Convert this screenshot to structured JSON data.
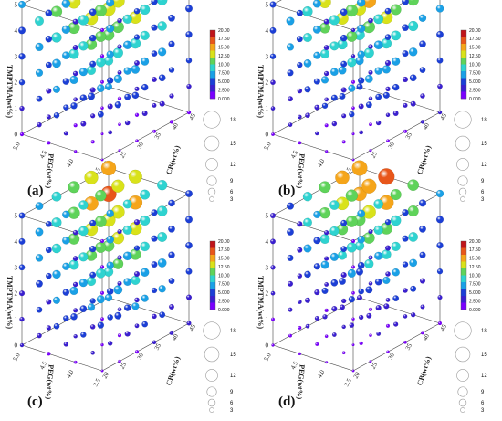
{
  "chart_data": [
    {
      "type": "scatter",
      "panel_label": "(a)",
      "xlabel": "CB(wt%)",
      "ylabel": "PEG(wt%)",
      "zlabel": "TMPTMA(wt%)",
      "x_ticks": [
        "20",
        "25",
        "30",
        "35",
        "40",
        "45"
      ],
      "y_ticks": [
        "3.5",
        "4.0",
        "4.5",
        "5.0"
      ],
      "z_ticks": [
        "0",
        "1",
        "2",
        "3",
        "4",
        "5"
      ],
      "xlim": [
        20,
        45
      ],
      "ylim": [
        3.5,
        5.0
      ],
      "zlim": [
        0,
        5
      ],
      "grid": "6x4x6 lattice of spheres",
      "hot_corner": [
        1.0,
        1.0,
        1.0
      ],
      "peak": 20,
      "sharpness": 1.0,
      "colorbar_ticks": [
        "20.00",
        "17.50",
        "15.00",
        "12.50",
        "10.00",
        "7.500",
        "5.000",
        "2.500",
        "0.000"
      ],
      "size_legend_ticks": [
        "18",
        "15",
        "12",
        "9",
        "6",
        "3"
      ]
    },
    {
      "type": "scatter",
      "panel_label": "(b)",
      "xlabel": "CB(wt%)",
      "ylabel": "PEG(wt%)",
      "zlabel": "TMPTMA(wt%)",
      "x_ticks": [
        "20",
        "25",
        "30",
        "35",
        "40",
        "45"
      ],
      "y_ticks": [
        "3.5",
        "4.0",
        "4.5",
        "5.0"
      ],
      "z_ticks": [
        "0",
        "1",
        "2",
        "3",
        "4",
        "5"
      ],
      "xlim": [
        20,
        45
      ],
      "ylim": [
        3.5,
        5.0
      ],
      "zlim": [
        0,
        5
      ],
      "grid": "6x4x6 lattice of spheres",
      "hot_corner": [
        1.0,
        0.85,
        1.0
      ],
      "peak": 20,
      "sharpness": 1.15,
      "colorbar_ticks": [
        "20.00",
        "17.50",
        "15.00",
        "12.50",
        "10.00",
        "7.500",
        "5.000",
        "2.500",
        "0.000"
      ],
      "size_legend_ticks": [
        "18",
        "15",
        "12",
        "9",
        "6",
        "3"
      ]
    },
    {
      "type": "scatter",
      "panel_label": "(c)",
      "xlabel": "CB(wt%)",
      "ylabel": "PEG(wt%)",
      "zlabel": "TMPTMA(wt%)",
      "x_ticks": [
        "20",
        "25",
        "30",
        "35",
        "40",
        "45"
      ],
      "y_ticks": [
        "3.5",
        "4.0",
        "4.5",
        "5.0"
      ],
      "z_ticks": [
        "0",
        "1",
        "2",
        "3",
        "4",
        "5"
      ],
      "xlim": [
        20,
        45
      ],
      "ylim": [
        3.5,
        5.0
      ],
      "zlim": [
        0,
        5
      ],
      "grid": "6x4x6 lattice of spheres",
      "hot_corner": [
        1.0,
        0.9,
        0.85
      ],
      "peak": 18,
      "sharpness": 1.1,
      "colorbar_ticks": [
        "20.00",
        "17.50",
        "15.00",
        "12.50",
        "10.00",
        "7.500",
        "5.000",
        "2.500",
        "0.000"
      ],
      "size_legend_ticks": [
        "18",
        "15",
        "12",
        "9",
        "6",
        "3"
      ]
    },
    {
      "type": "scatter",
      "panel_label": "(d)",
      "xlabel": "CB(wt%)",
      "ylabel": "PEG(wt%)",
      "zlabel": "TMPTMA(wt%)",
      "x_ticks": [
        "20",
        "25",
        "30",
        "35",
        "40",
        "45"
      ],
      "y_ticks": [
        "3.5",
        "4.0",
        "4.5",
        "5.0"
      ],
      "z_ticks": [
        "0",
        "1",
        "2",
        "3",
        "4",
        "5"
      ],
      "xlim": [
        20,
        45
      ],
      "ylim": [
        3.5,
        5.0
      ],
      "zlim": [
        0,
        5
      ],
      "grid": "6x4x6 lattice of spheres",
      "hot_corner": [
        1.0,
        0.8,
        1.0
      ],
      "peak": 20,
      "sharpness": 1.35,
      "colorbar_ticks": [
        "20.00",
        "17.50",
        "15.00",
        "12.50",
        "10.00",
        "7.500",
        "5.000",
        "2.500",
        "0.000"
      ],
      "size_legend_ticks": [
        "18",
        "15",
        "12",
        "9",
        "6",
        "3"
      ]
    }
  ],
  "colors": {
    "colormap": [
      "#7a00ff",
      "#3a1fd0",
      "#1c3fd6",
      "#1aa0e6",
      "#2ed3d0",
      "#5fd35a",
      "#d9e21a",
      "#f5a51a",
      "#e8561a",
      "#c0141a"
    ],
    "axis": "#333333",
    "frame": "#444444"
  }
}
